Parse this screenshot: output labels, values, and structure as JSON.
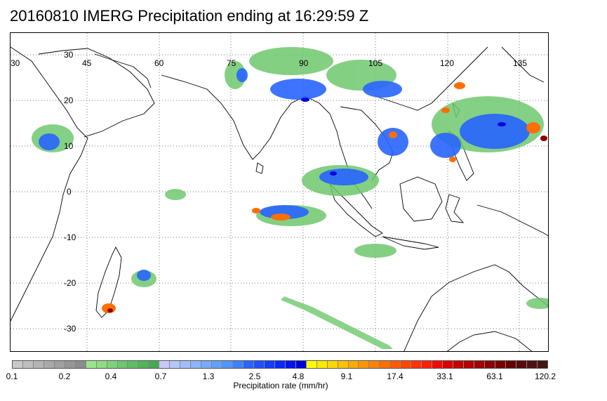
{
  "title": "20160810 IMERG Precipitation ending at 16:29:59 Z",
  "map": {
    "lon_labels": [
      "30",
      "45",
      "60",
      "75",
      "90",
      "105",
      "120",
      "135"
    ],
    "lat_labels": [
      "30",
      "20",
      "10",
      "0",
      "-10",
      "-20",
      "-30"
    ],
    "gridlines": "dotted"
  },
  "colorbar": {
    "tick_labels": [
      "0.1",
      "0.2",
      "0.4",
      "0.7",
      "1.3",
      "2.5",
      "4.8",
      "9.1",
      "17.4",
      "33.1",
      "63.1",
      "120.2"
    ],
    "unit_label": "Precipitation rate (mm/hr)",
    "swatches": [
      "#c8c8c8",
      "#bebebe",
      "#b4b4b4",
      "#aaaaaa",
      "#a0a0a0",
      "#969696",
      "#8c8c8c",
      "#9be68c",
      "#8cdc82",
      "#7dd278",
      "#6ec86e",
      "#5fbe64",
      "#50b45a",
      "#46aa50",
      "#c8c8ff",
      "#b4c8ff",
      "#a0beff",
      "#8cb4ff",
      "#78aaff",
      "#64a0ff",
      "#5096ff",
      "#3c82ff",
      "#2864ff",
      "#1e50ff",
      "#143cff",
      "#0a28ff",
      "#0014f0",
      "#0000dc",
      "#ffff00",
      "#ffeb00",
      "#ffd700",
      "#ffc300",
      "#ffaa00",
      "#ff9600",
      "#ff8200",
      "#ff6e00",
      "#ff5a00",
      "#ff4600",
      "#ff3200",
      "#ff1e00",
      "#f00a00",
      "#dc0000",
      "#c80000",
      "#b40000",
      "#a00000",
      "#8c0000",
      "#780000",
      "#640000",
      "#5a0a0a",
      "#501010",
      "#461414"
    ]
  },
  "colors": {
    "light_rain": "#6ec86e",
    "moderate": "#2864ff",
    "heavy": "#ff6e00",
    "extreme": "#8c0000"
  }
}
